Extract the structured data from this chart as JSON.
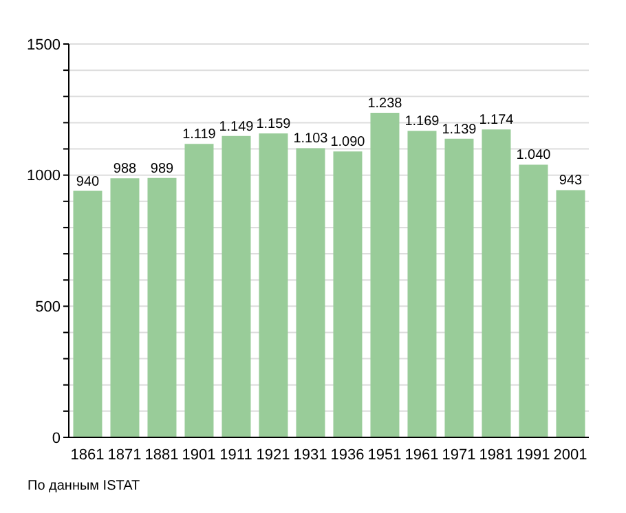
{
  "chart_data": {
    "type": "bar",
    "categories": [
      "1861",
      "1871",
      "1881",
      "1901",
      "1911",
      "1921",
      "1931",
      "1936",
      "1951",
      "1961",
      "1971",
      "1981",
      "1991",
      "2001"
    ],
    "values": [
      940,
      988,
      989,
      1119,
      1149,
      1159,
      1103,
      1090,
      1238,
      1169,
      1139,
      1174,
      1040,
      943
    ],
    "value_labels": [
      "940",
      "988",
      "989",
      "1.119",
      "1.149",
      "1.159",
      "1.103",
      "1.090",
      "1.238",
      "1.169",
      "1.139",
      "1.174",
      "1.040",
      "943"
    ],
    "color": "#99cc99",
    "ylim": [
      0,
      1500
    ],
    "yticks": [
      0,
      {
        "value": 100,
        "label": null
      },
      {
        "value": 200,
        "label": null
      },
      {
        "value": 300,
        "label": null
      },
      {
        "value": 400,
        "label": null
      },
      500,
      {
        "value": 600,
        "label": null
      },
      {
        "value": 700,
        "label": null
      },
      {
        "value": 800,
        "label": null
      },
      {
        "value": 900,
        "label": null
      },
      1000,
      {
        "value": 1100,
        "label": null
      },
      {
        "value": 1200,
        "label": null
      },
      {
        "value": 1300,
        "label": null
      },
      {
        "value": 1400,
        "label": null
      },
      1500
    ],
    "grid": "y",
    "annotations": [
      "По данным ISTAT"
    ]
  }
}
